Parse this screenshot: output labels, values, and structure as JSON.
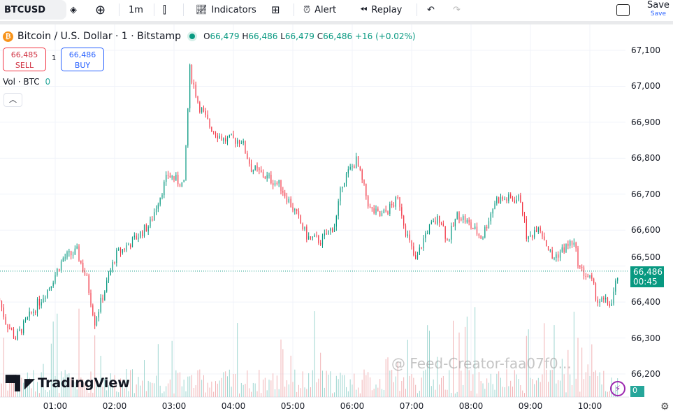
{
  "toolbar": {
    "symbol": "BTCUSD",
    "interval": "1m",
    "indicators": "Indicators",
    "alert": "Alert",
    "replay": "Replay",
    "save": "Save",
    "save_sub": "Save"
  },
  "legend": {
    "title": "Bitcoin / U.S. Dollar · 1 · Bitstamp",
    "o_label": "O",
    "o": "66,479",
    "h_label": "H",
    "h": "66,486",
    "l_label": "L",
    "l": "66,479",
    "c_label": "C",
    "c": "66,486",
    "change": "+16 (+0.02%)"
  },
  "trade": {
    "sell_price": "66,485",
    "sell_label": "SELL",
    "qty": "1",
    "buy_price": "66,486",
    "buy_label": "BUY"
  },
  "volume": {
    "label": "Vol · BTC",
    "value": "0",
    "axis_value": "0"
  },
  "last_price": {
    "price": "66,486",
    "countdown": "00:45"
  },
  "colors": {
    "up": "#089981",
    "down": "#f23645",
    "vol_up": "#9fd6d0",
    "vol_down": "#f1b3b6"
  },
  "logo": "TradingView",
  "watermark": "@ Feed-Creator-faa07f0...",
  "chart_data": {
    "type": "candlestick",
    "y_ticks": [
      "67,100",
      "67,000",
      "66,900",
      "66,800",
      "66,700",
      "66,600",
      "66,500",
      "66,400",
      "66,300",
      "66,200"
    ],
    "x_ticks": [
      "01:00",
      "02:00",
      "03:00",
      "04:00",
      "05:00",
      "06:00",
      "07:00",
      "08:00",
      "09:00",
      "10:00"
    ],
    "ylim": [
      66150,
      67150
    ],
    "approx_close_path": [
      [
        "00:04",
        66404
      ],
      [
        "00:10",
        66346
      ],
      [
        "00:20",
        66300
      ],
      [
        "00:40",
        66385
      ],
      [
        "00:54",
        66443
      ],
      [
        "01:08",
        66521
      ],
      [
        "01:22",
        66540
      ],
      [
        "01:32",
        66462
      ],
      [
        "01:40",
        66346
      ],
      [
        "02:01",
        66530
      ],
      [
        "02:18",
        66569
      ],
      [
        "02:36",
        66618
      ],
      [
        "02:43",
        66676
      ],
      [
        "02:54",
        66754
      ],
      [
        "03:10",
        66725
      ],
      [
        "03:16",
        67046
      ],
      [
        "03:25",
        66948
      ],
      [
        "03:36",
        66890
      ],
      [
        "03:50",
        66851
      ],
      [
        "04:08",
        66851
      ],
      [
        "04:18",
        66773
      ],
      [
        "04:47",
        66725
      ],
      [
        "05:01",
        66657
      ],
      [
        "05:15",
        66579
      ],
      [
        "05:29",
        66570
      ],
      [
        "05:43",
        66618
      ],
      [
        "05:50",
        66735
      ],
      [
        "06:04",
        66793
      ],
      [
        "06:18",
        66657
      ],
      [
        "06:29",
        66638
      ],
      [
        "06:47",
        66686
      ],
      [
        "06:54",
        66599
      ],
      [
        "07:04",
        66511
      ],
      [
        "07:15",
        66598
      ],
      [
        "07:29",
        66637
      ],
      [
        "07:36",
        66569
      ],
      [
        "07:47",
        66647
      ],
      [
        "08:11",
        66579
      ],
      [
        "08:25",
        66686
      ],
      [
        "08:50",
        66686
      ],
      [
        "08:57",
        66569
      ],
      [
        "09:08",
        66618
      ],
      [
        "09:22",
        66521
      ],
      [
        "09:43",
        66569
      ],
      [
        "09:50",
        66492
      ],
      [
        "10:01",
        66462
      ],
      [
        "10:08",
        66404
      ],
      [
        "10:22",
        66395
      ],
      [
        "10:29",
        66486
      ]
    ]
  }
}
